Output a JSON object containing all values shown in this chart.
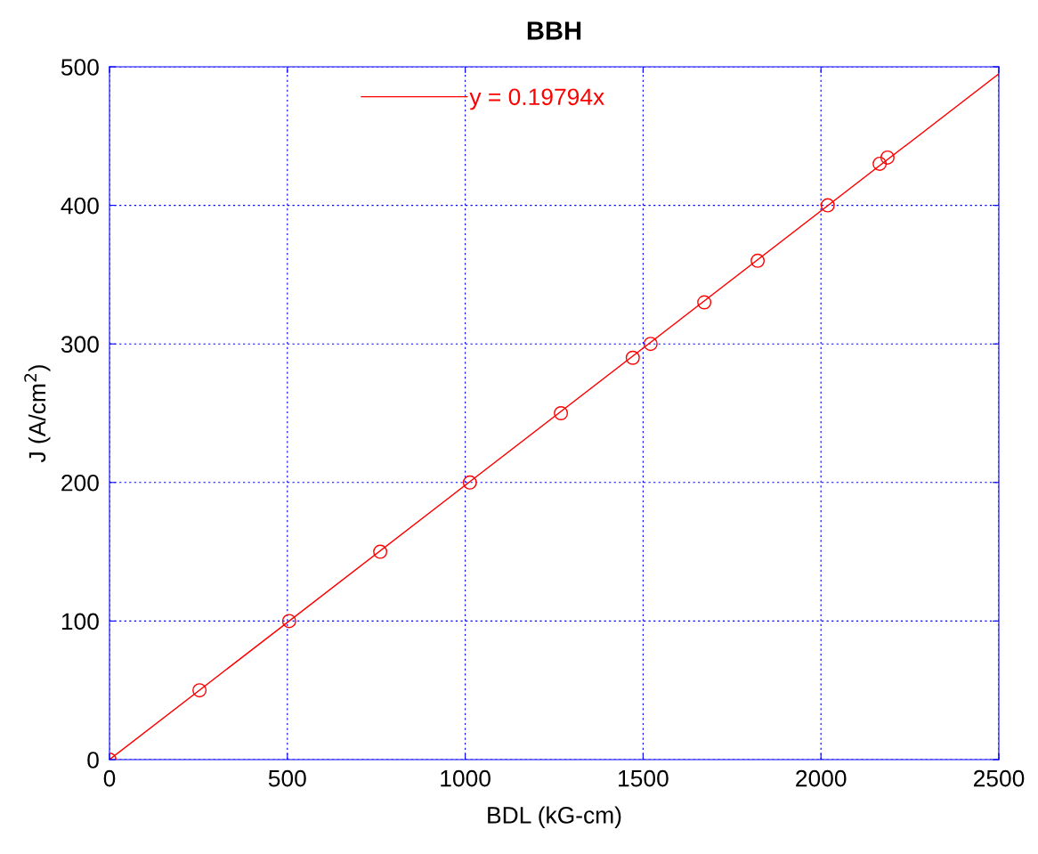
{
  "chart_data": {
    "type": "scatter",
    "title": "BBH",
    "xlabel": "BDL (kG-cm)",
    "ylabel": "J (A/cm$^{2}$)",
    "xlim": [
      0,
      2500
    ],
    "ylim": [
      0,
      500
    ],
    "xticks": [
      0,
      500,
      1000,
      1500,
      2000,
      2500
    ],
    "yticks": [
      0,
      100,
      200,
      300,
      400,
      500
    ],
    "grid": true,
    "legend": "top",
    "marker": "circle",
    "series": [
      {
        "color": "#ff0000",
        "x": [
          0,
          253,
          505,
          761,
          1013,
          1269,
          1471,
          1521,
          1672,
          1822,
          2019,
          2165,
          2187
        ],
        "values": [
          0,
          50,
          100,
          150,
          200,
          250,
          290,
          300,
          330,
          360,
          400,
          430,
          434.5
        ]
      },
      {
        "type": "line",
        "name": "y = 0.19794x",
        "color": "#ff0000",
        "marker": "none",
        "line_style": "solid",
        "x": [
          0,
          2500
        ],
        "values": [
          0,
          495
        ]
      }
    ]
  }
}
